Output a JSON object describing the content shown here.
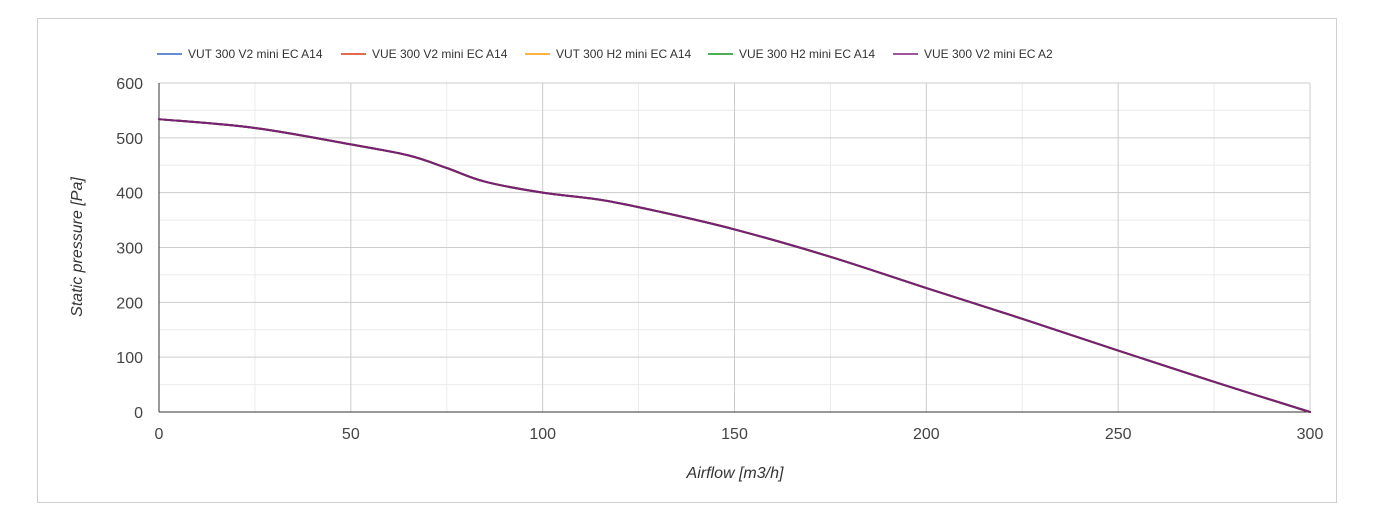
{
  "chart_data": {
    "type": "line",
    "title": "",
    "xlabel": "Airflow [m3/h]",
    "ylabel": "Static pressure [Pa]",
    "xlim": [
      0,
      300
    ],
    "ylim": [
      0,
      600
    ],
    "x_ticks": [
      0,
      50,
      100,
      150,
      200,
      250,
      300
    ],
    "y_ticks": [
      0,
      100,
      200,
      300,
      400,
      500,
      600
    ],
    "grid": true,
    "legend_position": "top-left",
    "series": [
      {
        "name": "VUT 300 V2 mini EC A14",
        "color": "#3366cc",
        "x": [
          0,
          25,
          50,
          65,
          75,
          85,
          100,
          115,
          130,
          150,
          175,
          200,
          225,
          250,
          275,
          300
        ],
        "y": [
          534,
          518,
          488,
          468,
          445,
          420,
          400,
          387,
          366,
          333,
          283,
          226,
          170,
          112,
          55,
          0
        ]
      },
      {
        "name": "VUE 300 V2 mini EC A14",
        "color": "#dc3912",
        "x": [
          0,
          25,
          50,
          65,
          75,
          85,
          100,
          115,
          130,
          150,
          175,
          200,
          225,
          250,
          275,
          300
        ],
        "y": [
          534,
          518,
          488,
          468,
          445,
          420,
          400,
          387,
          366,
          333,
          283,
          226,
          170,
          112,
          55,
          0
        ]
      },
      {
        "name": "VUT 300 H2 mini EC A14",
        "color": "#ff9900",
        "x": [
          0,
          25,
          50,
          65,
          75,
          85,
          100,
          115,
          130,
          150,
          175,
          200,
          225,
          250,
          275,
          300
        ],
        "y": [
          534,
          518,
          488,
          468,
          445,
          420,
          400,
          387,
          366,
          333,
          283,
          226,
          170,
          112,
          55,
          0
        ]
      },
      {
        "name": "VUE 300 H2 mini EC A14",
        "color": "#109618",
        "x": [
          0,
          25,
          50,
          65,
          75,
          85,
          100,
          115,
          130,
          150,
          175,
          200,
          225,
          250,
          275,
          300
        ],
        "y": [
          534,
          518,
          488,
          468,
          445,
          420,
          400,
          387,
          366,
          333,
          283,
          226,
          170,
          112,
          55,
          0
        ]
      },
      {
        "name": "VUE 300 V2 mini EC A2",
        "color": "#7b1e7a",
        "x": [
          0,
          25,
          50,
          65,
          75,
          85,
          100,
          115,
          130,
          150,
          175,
          200,
          225,
          250,
          275,
          300
        ],
        "y": [
          534,
          518,
          488,
          468,
          445,
          420,
          400,
          387,
          366,
          333,
          283,
          226,
          170,
          112,
          55,
          0
        ]
      }
    ]
  }
}
